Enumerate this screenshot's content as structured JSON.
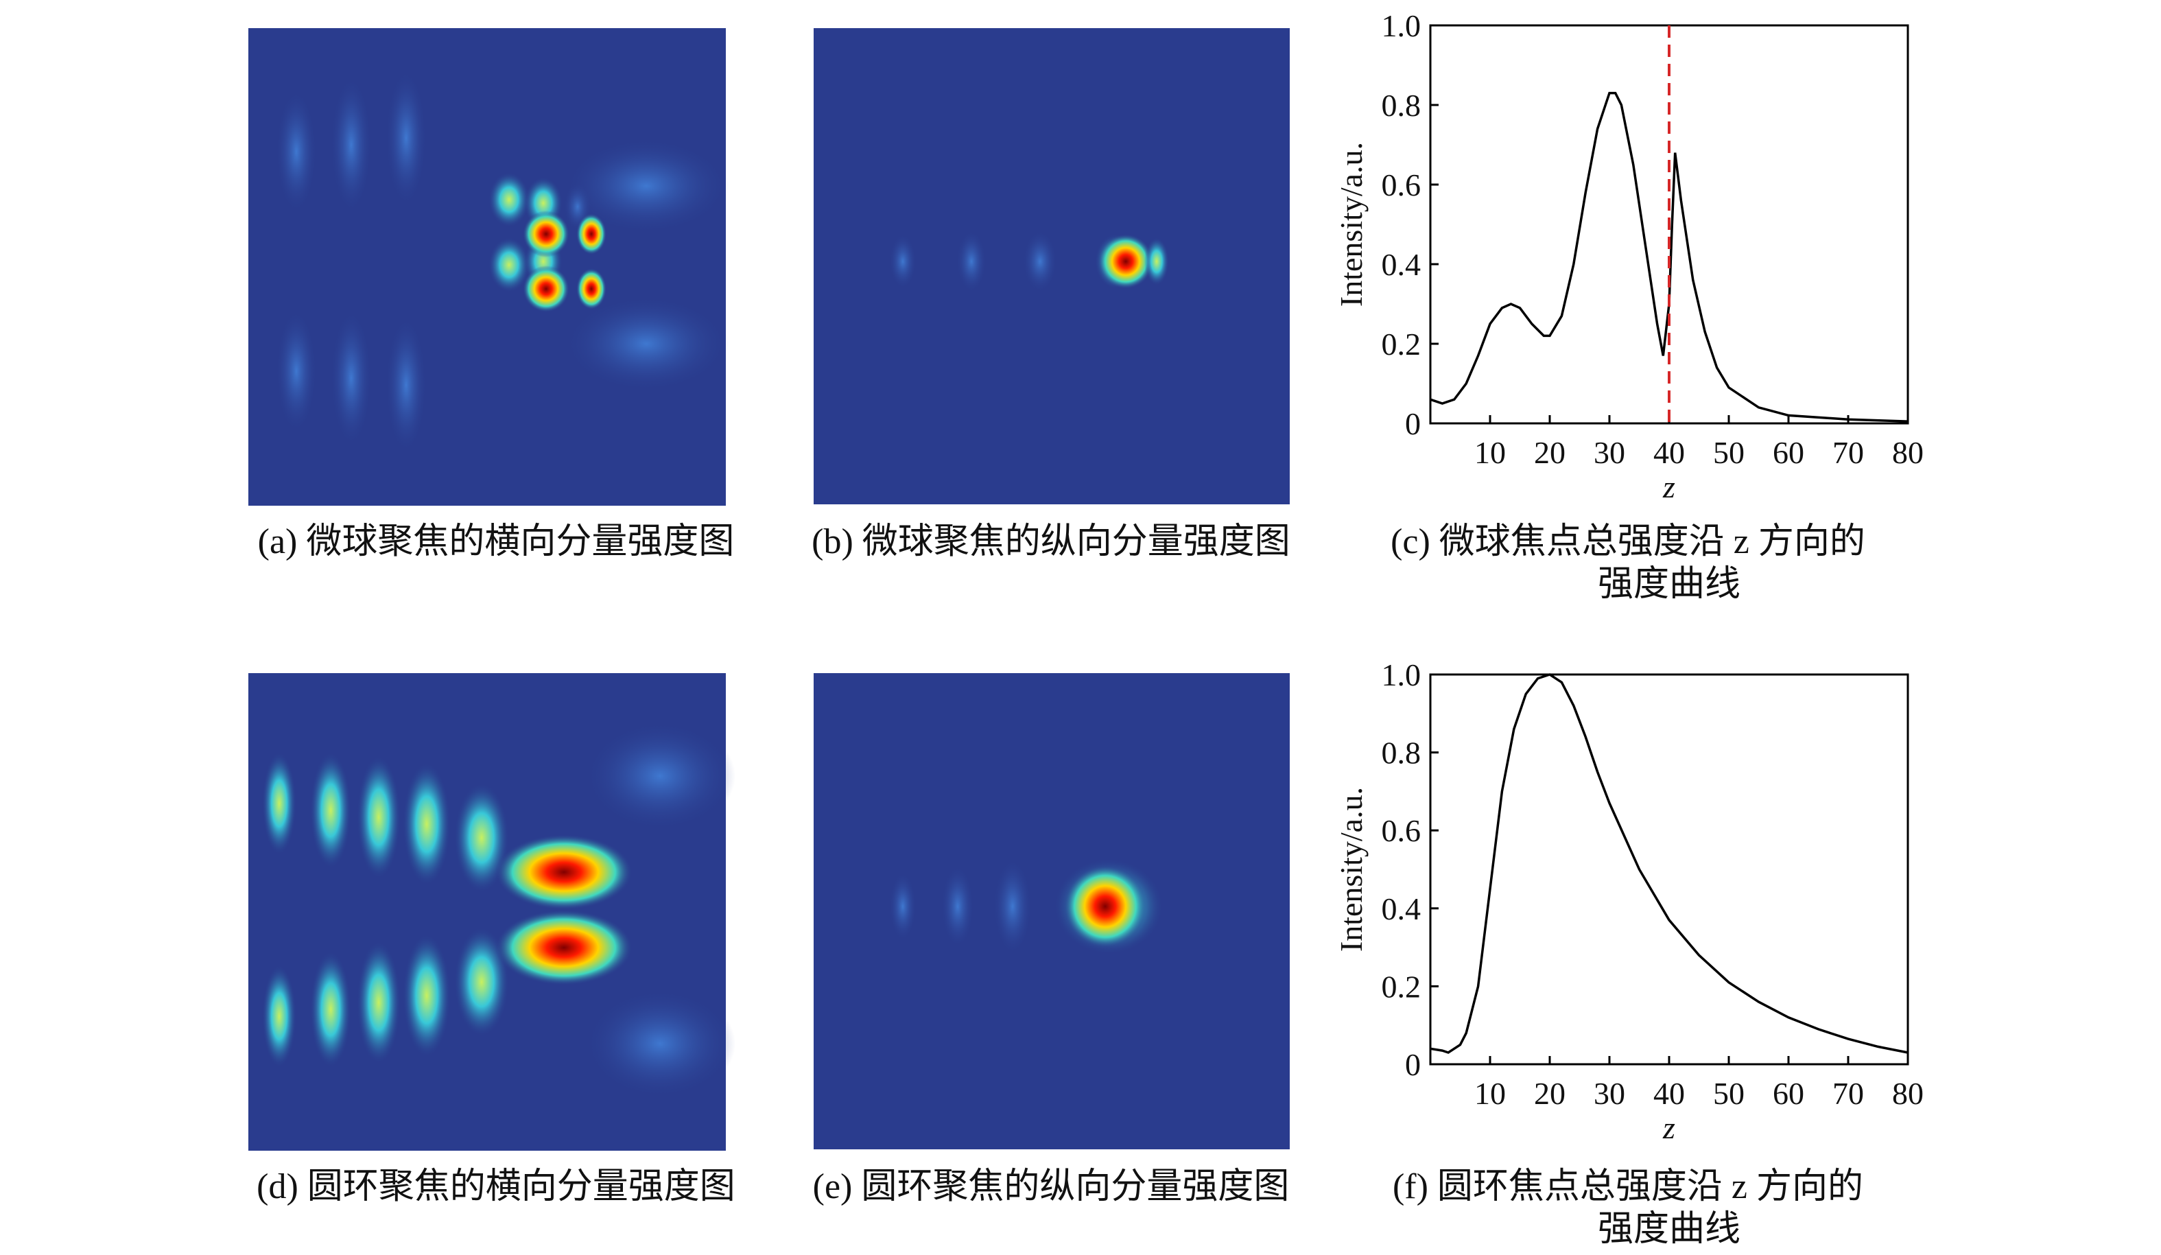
{
  "images": [
    {
      "caption": "(a) 微球聚焦的横向分量强度图"
    },
    {
      "caption": "(b) 微球聚焦的纵向分量强度图"
    },
    {
      "caption": "(d) 圆环聚焦的横向分量强度图"
    },
    {
      "caption": "(e) 圆环聚焦的纵向分量强度图"
    }
  ],
  "chart_data": [
    {
      "type": "line",
      "caption": [
        "(c) 微球焦点总强度沿 z 方向的",
        "强度曲线"
      ],
      "xlabel": "z",
      "ylabel": "Intensity/a.u.",
      "x": [
        0,
        2,
        4,
        6,
        8,
        10,
        12,
        13.5,
        15,
        17,
        19,
        20,
        22,
        24,
        26,
        28,
        30,
        31,
        32,
        34,
        36,
        38,
        39,
        40,
        40.5,
        41,
        42,
        44,
        46,
        48,
        50,
        55,
        60,
        70,
        80
      ],
      "values": [
        0.06,
        0.05,
        0.06,
        0.1,
        0.17,
        0.25,
        0.29,
        0.3,
        0.29,
        0.25,
        0.22,
        0.22,
        0.27,
        0.4,
        0.58,
        0.74,
        0.83,
        0.83,
        0.8,
        0.65,
        0.45,
        0.25,
        0.17,
        0.3,
        0.5,
        0.68,
        0.56,
        0.36,
        0.23,
        0.14,
        0.09,
        0.04,
        0.02,
        0.01,
        0.005
      ],
      "color": "#000000",
      "vline": 40,
      "vline_color": "#d62728",
      "xlim": [
        0,
        80
      ],
      "xticks": [
        10,
        20,
        30,
        40,
        50,
        60,
        70,
        80
      ],
      "ylim": [
        0,
        1
      ],
      "yticks": [
        0,
        0.2,
        0.4,
        0.6,
        0.8,
        {
          "value": 1,
          "label": "1.0"
        }
      ]
    },
    {
      "type": "line",
      "caption": [
        "(f) 圆环焦点总强度沿 z 方向的",
        "强度曲线"
      ],
      "xlabel": "z",
      "ylabel": "Intensity/a.u.",
      "x": [
        0,
        2,
        3,
        5,
        6,
        8,
        10,
        12,
        14,
        16,
        18,
        20,
        22,
        24,
        26,
        28,
        30,
        35,
        40,
        45,
        50,
        55,
        60,
        65,
        70,
        75,
        80
      ],
      "values": [
        0.04,
        0.035,
        0.03,
        0.05,
        0.08,
        0.2,
        0.45,
        0.7,
        0.86,
        0.95,
        0.99,
        1.0,
        0.98,
        0.92,
        0.84,
        0.75,
        0.67,
        0.5,
        0.37,
        0.28,
        0.21,
        0.16,
        0.12,
        0.09,
        0.065,
        0.045,
        0.03
      ],
      "color": "#000000",
      "xlim": [
        0,
        80
      ],
      "xticks": [
        10,
        20,
        30,
        40,
        50,
        60,
        70,
        80
      ],
      "ylim": [
        0,
        1
      ],
      "yticks": [
        0,
        0.2,
        0.4,
        0.6,
        0.8,
        {
          "value": 1,
          "label": "1.0"
        }
      ]
    }
  ]
}
